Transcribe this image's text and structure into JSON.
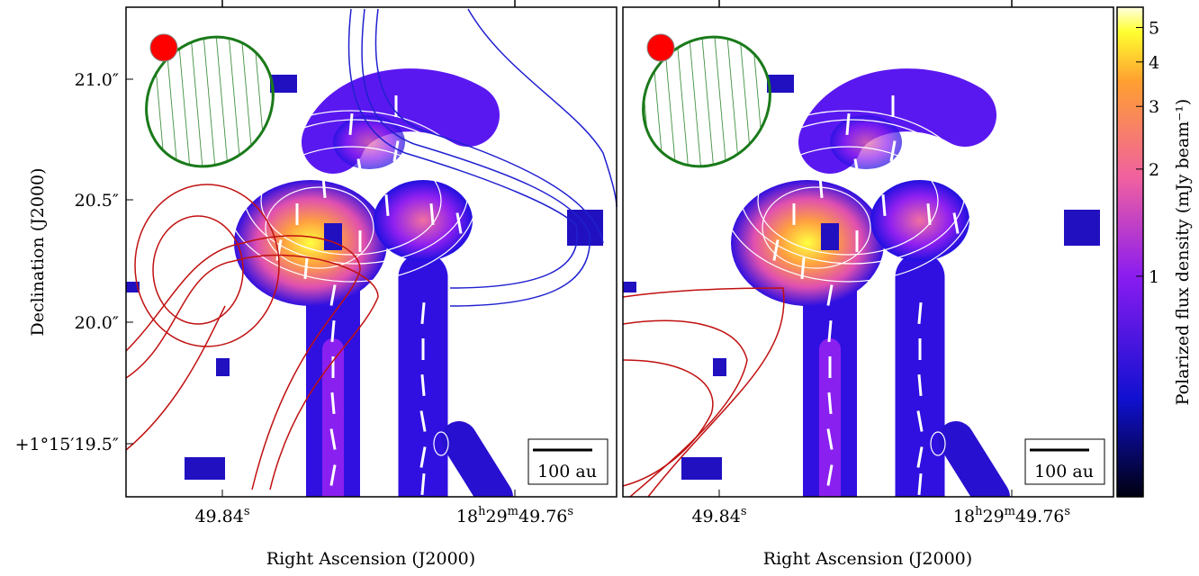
{
  "panels": [
    {
      "x_axis_label": "Right Ascension (J2000)",
      "y_axis_label": "Declination (J2000)",
      "x_tick_labels": [
        [
          {
            "text": "49.84"
          },
          {
            "sup": "s"
          }
        ],
        [
          {
            "text": "18"
          },
          {
            "sup": "h"
          },
          {
            "text": "29"
          },
          {
            "sup": "m"
          },
          {
            "text": "49.76"
          },
          {
            "sup": "s"
          }
        ]
      ],
      "y_tick_labels": [
        "21.0″",
        "20.5″",
        "20.0″",
        "+1°15′19.5″"
      ],
      "scale_bar": "100 au"
    },
    {
      "x_axis_label": "Right Ascension (J2000)",
      "x_tick_labels": [
        [
          {
            "text": "49.84"
          },
          {
            "sup": "s"
          }
        ],
        [
          {
            "text": "18"
          },
          {
            "sup": "h"
          },
          {
            "text": "29"
          },
          {
            "sup": "m"
          },
          {
            "text": "49.76"
          },
          {
            "sup": "s"
          }
        ]
      ],
      "scale_bar": "100 au"
    }
  ],
  "colorbar": {
    "label": "Polarized flux density (mJy beam⁻¹)",
    "scale": "log",
    "lim": [
      0.24,
      5.7
    ],
    "ticks": [
      1,
      2,
      3,
      4,
      5
    ]
  }
}
